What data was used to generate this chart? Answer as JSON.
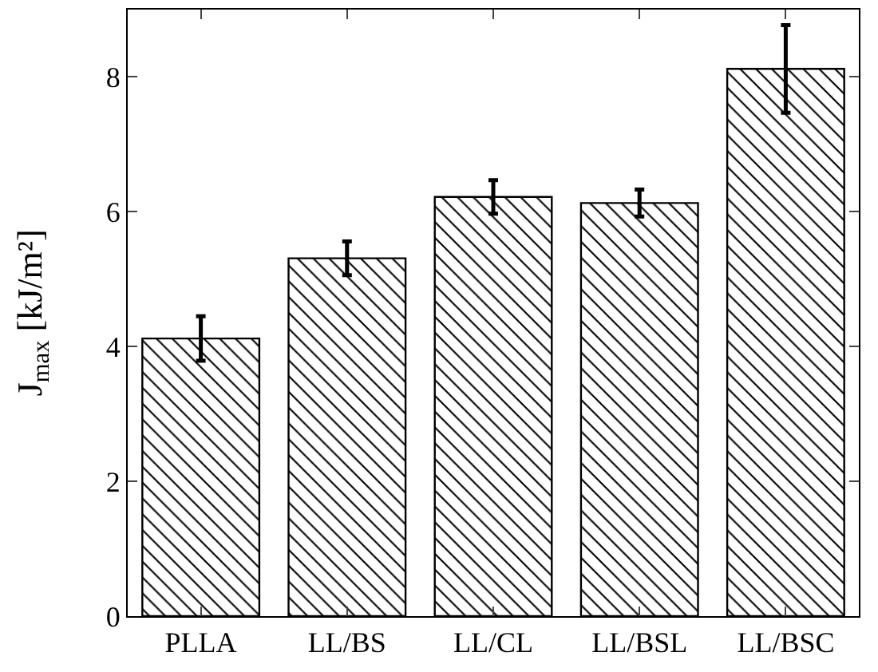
{
  "chart_data": {
    "type": "bar",
    "ylabel": "J$_{max}$ [kJ/m²]",
    "categories": [
      "PLLA",
      "LL/BS",
      "LL/CL",
      "LL/BSL",
      "LL/BSC"
    ],
    "values": [
      4.12,
      5.31,
      6.22,
      6.13,
      8.12
    ],
    "errors": [
      0.33,
      0.25,
      0.25,
      0.2,
      0.65
    ],
    "color": "#000000",
    "ylim": [
      0,
      9
    ],
    "yticks": [
      0,
      2,
      4,
      6,
      8
    ],
    "grid": false
  }
}
